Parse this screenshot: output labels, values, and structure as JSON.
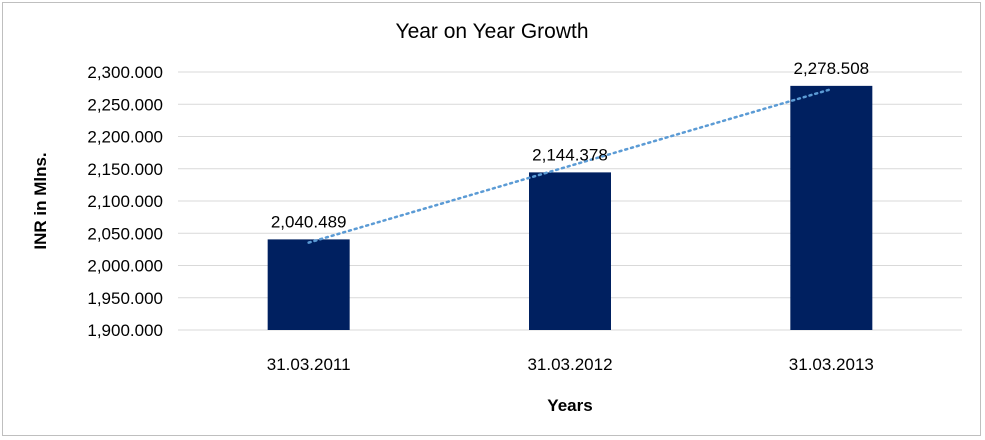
{
  "chart_data": {
    "type": "bar",
    "title": "Year on Year Growth",
    "xlabel": "Years",
    "ylabel": "INR in Mlns.",
    "categories": [
      "31.03.2011",
      "31.03.2012",
      "31.03.2013"
    ],
    "values": [
      2040.489,
      2144.378,
      2278.508
    ],
    "data_labels": [
      "2,040.489",
      "2,144.378",
      "2,278.508"
    ],
    "ylim": [
      1900,
      2300
    ],
    "yticks": [
      1900,
      1950,
      2000,
      2050,
      2100,
      2150,
      2200,
      2250,
      2300
    ],
    "ytick_labels": [
      "1,900.000",
      "1,950.000",
      "2,000.000",
      "2,050.000",
      "2,100.000",
      "2,150.000",
      "2,200.000",
      "2,250.000",
      "2,300.000"
    ],
    "grid": true,
    "legend": "none",
    "trendline": "linear",
    "bar_color": "#002060",
    "trendline_color": "#5b9bd5"
  }
}
